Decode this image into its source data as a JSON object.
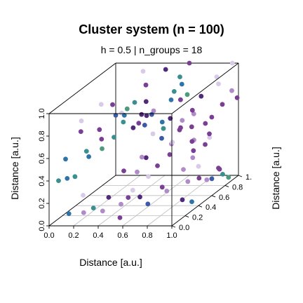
{
  "chart_data": {
    "type": "scatter",
    "projection": "3d",
    "title": "Cluster system (n = 100)",
    "subtitle": "h = 0.5 | n_groups = 18",
    "xlabel": "Distance [a.u.]",
    "ylabel": "Distance [a.u.]",
    "zlabel": "Distance [a.u.]",
    "xlim": [
      0,
      1
    ],
    "ylim": [
      0,
      1
    ],
    "zlim": [
      0,
      1
    ],
    "xticks": [
      "0.0",
      "0.2",
      "0.4",
      "0.6",
      "0.8",
      "1.0"
    ],
    "yticks": [
      "0.0",
      "0.2",
      "0.4",
      "0.6",
      "0.8",
      "1."
    ],
    "zticks": [
      "0.0",
      "0.2",
      "0.4",
      "0.6",
      "0.8",
      "1.0"
    ],
    "grid": "floor",
    "colors": {
      "teal": "#3a8f8f",
      "blue": "#2f74a8",
      "indigo": "#3d5aa8",
      "darkpurple": "#4f2a7a",
      "purple": "#7a3f95",
      "lilac": "#b18bc9",
      "lavender": "#d9cbe8",
      "green": "#4e9a7c"
    },
    "points": [
      {
        "x": 0.12,
        "y": 0.05,
        "z": 0.4,
        "c": "blue"
      },
      {
        "x": 0.2,
        "y": 0.02,
        "z": 0.43,
        "c": "teal"
      },
      {
        "x": 0.28,
        "y": 0.08,
        "z": 0.58,
        "c": "blue"
      },
      {
        "x": 0.35,
        "y": 0.15,
        "z": 0.62,
        "c": "green"
      },
      {
        "x": 0.4,
        "y": 0.05,
        "z": 0.75,
        "c": "purple"
      },
      {
        "x": 0.15,
        "y": 0.2,
        "z": 0.75,
        "c": "purple"
      },
      {
        "x": 0.1,
        "y": 0.3,
        "z": 0.8,
        "c": "lavender"
      },
      {
        "x": 0.25,
        "y": 0.1,
        "z": 0.62,
        "c": "teal"
      },
      {
        "x": 0.42,
        "y": 0.2,
        "z": 0.7,
        "c": "teal"
      },
      {
        "x": 0.45,
        "y": 0.3,
        "z": 0.85,
        "c": "blue"
      },
      {
        "x": 0.3,
        "y": 0.4,
        "z": 0.9,
        "c": "purple"
      },
      {
        "x": 0.55,
        "y": 0.1,
        "z": 0.88,
        "c": "teal"
      },
      {
        "x": 0.62,
        "y": 0.12,
        "z": 0.82,
        "c": "darkpurple"
      },
      {
        "x": 0.5,
        "y": 0.25,
        "z": 0.93,
        "c": "green"
      },
      {
        "x": 0.6,
        "y": 0.35,
        "z": 0.95,
        "c": "darkpurple"
      },
      {
        "x": 0.7,
        "y": 0.25,
        "z": 0.88,
        "c": "indigo"
      },
      {
        "x": 0.75,
        "y": 0.45,
        "z": 0.92,
        "c": "blue"
      },
      {
        "x": 0.85,
        "y": 0.15,
        "z": 0.8,
        "c": "teal"
      },
      {
        "x": 0.95,
        "y": 0.1,
        "z": 0.7,
        "c": "lavender"
      },
      {
        "x": 0.9,
        "y": 0.3,
        "z": 0.72,
        "c": "purple"
      },
      {
        "x": 0.55,
        "y": 0.45,
        "z": 0.78,
        "c": "darkpurple"
      },
      {
        "x": 0.65,
        "y": 0.5,
        "z": 0.7,
        "c": "blue"
      },
      {
        "x": 0.72,
        "y": 0.55,
        "z": 0.95,
        "c": "teal"
      },
      {
        "x": 0.8,
        "y": 0.6,
        "z": 0.9,
        "c": "green"
      },
      {
        "x": 0.95,
        "y": 0.4,
        "z": 0.85,
        "c": "purple"
      },
      {
        "x": 0.48,
        "y": 0.55,
        "z": 0.65,
        "c": "indigo"
      },
      {
        "x": 0.4,
        "y": 0.65,
        "z": 0.7,
        "c": "darkpurple"
      },
      {
        "x": 0.35,
        "y": 0.7,
        "z": 0.6,
        "c": "purple"
      },
      {
        "x": 0.52,
        "y": 0.6,
        "z": 0.55,
        "c": "lavender"
      },
      {
        "x": 0.58,
        "y": 0.75,
        "z": 0.62,
        "c": "darkpurple"
      },
      {
        "x": 0.65,
        "y": 0.8,
        "z": 0.58,
        "c": "lilac"
      },
      {
        "x": 0.7,
        "y": 0.85,
        "z": 0.5,
        "c": "purple"
      },
      {
        "x": 0.8,
        "y": 0.7,
        "z": 0.45,
        "c": "lilac"
      },
      {
        "x": 0.85,
        "y": 0.6,
        "z": 0.4,
        "c": "purple"
      },
      {
        "x": 0.9,
        "y": 0.75,
        "z": 0.45,
        "c": "lavender"
      },
      {
        "x": 0.95,
        "y": 0.85,
        "z": 0.7,
        "c": "purple"
      },
      {
        "x": 1.0,
        "y": 0.9,
        "z": 0.8,
        "c": "lilac"
      },
      {
        "x": 1.0,
        "y": 0.7,
        "z": 0.95,
        "c": "lavender"
      },
      {
        "x": 0.3,
        "y": 0.9,
        "z": 0.85,
        "c": "purple"
      },
      {
        "x": 0.25,
        "y": 0.95,
        "z": 0.95,
        "c": "lavender"
      },
      {
        "x": 0.45,
        "y": 0.92,
        "z": 0.98,
        "c": "darkpurple"
      },
      {
        "x": 0.55,
        "y": 0.95,
        "z": 0.9,
        "c": "teal"
      },
      {
        "x": 0.6,
        "y": 1.0,
        "z": 1.0,
        "c": "purple"
      },
      {
        "x": 0.85,
        "y": 0.95,
        "z": 0.9,
        "c": "lavender"
      },
      {
        "x": 0.95,
        "y": 1.0,
        "z": 1.0,
        "c": "lavender"
      },
      {
        "x": 1.0,
        "y": 0.98,
        "z": 0.7,
        "c": "purple"
      },
      {
        "x": 0.75,
        "y": 0.9,
        "z": 0.75,
        "c": "darkpurple"
      },
      {
        "x": 0.68,
        "y": 0.72,
        "z": 0.8,
        "c": "purple"
      },
      {
        "x": 0.62,
        "y": 0.85,
        "z": 0.88,
        "c": "blue"
      },
      {
        "x": 0.88,
        "y": 0.82,
        "z": 0.6,
        "c": "purple"
      },
      {
        "x": 0.92,
        "y": 0.65,
        "z": 0.62,
        "c": "purple"
      },
      {
        "x": 0.98,
        "y": 0.6,
        "z": 0.55,
        "c": "purple"
      },
      {
        "x": 1.0,
        "y": 0.5,
        "z": 0.5,
        "c": "purple"
      },
      {
        "x": 0.78,
        "y": 0.4,
        "z": 0.55,
        "c": "lilac"
      },
      {
        "x": 0.6,
        "y": 0.35,
        "z": 0.45,
        "c": "darkpurple"
      },
      {
        "x": 0.72,
        "y": 0.3,
        "z": 0.4,
        "c": "purple"
      },
      {
        "x": 0.85,
        "y": 0.45,
        "z": 0.3,
        "c": "lilac"
      },
      {
        "x": 0.95,
        "y": 0.5,
        "z": 0.2,
        "c": "purple"
      },
      {
        "x": 1.0,
        "y": 0.6,
        "z": 0.15,
        "c": "indigo"
      },
      {
        "x": 1.0,
        "y": 0.7,
        "z": 0.2,
        "c": "purple"
      },
      {
        "x": 0.98,
        "y": 0.8,
        "z": 0.1,
        "c": "teal"
      },
      {
        "x": 1.0,
        "y": 0.85,
        "z": 0.05,
        "c": "green"
      },
      {
        "x": 0.9,
        "y": 0.9,
        "z": 0.1,
        "c": "purple"
      },
      {
        "x": 0.85,
        "y": 0.8,
        "z": 0.05,
        "c": "lilac"
      },
      {
        "x": 0.75,
        "y": 0.7,
        "z": 0.08,
        "c": "lilac"
      },
      {
        "x": 0.65,
        "y": 0.5,
        "z": 0.12,
        "c": "purple"
      },
      {
        "x": 0.55,
        "y": 0.35,
        "z": 0.1,
        "c": "darkpurple"
      },
      {
        "x": 0.45,
        "y": 0.25,
        "z": 0.08,
        "c": "lilac"
      },
      {
        "x": 0.4,
        "y": 0.45,
        "z": 0.05,
        "c": "purple"
      },
      {
        "x": 0.5,
        "y": 0.4,
        "z": 0.3,
        "c": "lilac"
      },
      {
        "x": 0.6,
        "y": 0.15,
        "z": 0.25,
        "c": "lavender"
      },
      {
        "x": 0.75,
        "y": 0.1,
        "z": 0.15,
        "c": "indigo"
      },
      {
        "x": 0.85,
        "y": 0.2,
        "z": 0.22,
        "c": "lilac"
      },
      {
        "x": 0.95,
        "y": 0.25,
        "z": 0.12,
        "c": "darkpurple"
      },
      {
        "x": 1.0,
        "y": 0.3,
        "z": 0.08,
        "c": "blue"
      },
      {
        "x": 0.55,
        "y": 0.05,
        "z": 0.05,
        "c": "purple"
      },
      {
        "x": 0.35,
        "y": 0.02,
        "z": 0.15,
        "c": "teal"
      },
      {
        "x": 0.25,
        "y": 0.05,
        "z": 0.25,
        "c": "lavender"
      },
      {
        "x": 0.15,
        "y": 0.02,
        "z": 0.1,
        "c": "blue"
      },
      {
        "x": 0.2,
        "y": 0.15,
        "z": 0.05,
        "c": "lilac"
      },
      {
        "x": 0.3,
        "y": 0.25,
        "z": 0.02,
        "c": "lilac"
      },
      {
        "x": 0.42,
        "y": 0.12,
        "z": 0.2,
        "c": "darkpurple"
      },
      {
        "x": 0.5,
        "y": 0.2,
        "z": 0.4,
        "c": "purple"
      },
      {
        "x": 0.62,
        "y": 0.25,
        "z": 0.5,
        "c": "lilac"
      },
      {
        "x": 0.7,
        "y": 0.4,
        "z": 0.6,
        "c": "indigo"
      },
      {
        "x": 0.8,
        "y": 0.5,
        "z": 0.65,
        "c": "purple"
      },
      {
        "x": 0.88,
        "y": 0.55,
        "z": 0.75,
        "c": "lilac"
      },
      {
        "x": 0.92,
        "y": 0.45,
        "z": 0.55,
        "c": "purple"
      },
      {
        "x": 0.98,
        "y": 0.35,
        "z": 0.45,
        "c": "lilac"
      },
      {
        "x": 1.0,
        "y": 0.4,
        "z": 0.35,
        "c": "lavender"
      },
      {
        "x": 0.82,
        "y": 0.3,
        "z": 0.5,
        "c": "purple"
      },
      {
        "x": 0.7,
        "y": 0.2,
        "z": 0.35,
        "c": "lavender"
      },
      {
        "x": 0.58,
        "y": 0.5,
        "z": 0.8,
        "c": "lilac"
      },
      {
        "x": 0.48,
        "y": 0.4,
        "z": 0.92,
        "c": "teal"
      },
      {
        "x": 0.38,
        "y": 0.3,
        "z": 0.85,
        "c": "indigo"
      },
      {
        "x": 0.32,
        "y": 0.5,
        "z": 0.78,
        "c": "lavender"
      },
      {
        "x": 0.22,
        "y": 0.35,
        "z": 0.7,
        "c": "purple"
      },
      {
        "x": 0.18,
        "y": 0.45,
        "z": 0.88,
        "c": "lavender"
      },
      {
        "x": 0.08,
        "y": 0.1,
        "z": 0.55,
        "c": "blue"
      },
      {
        "x": 0.05,
        "y": 0.05,
        "z": 0.38,
        "c": "teal"
      }
    ]
  }
}
